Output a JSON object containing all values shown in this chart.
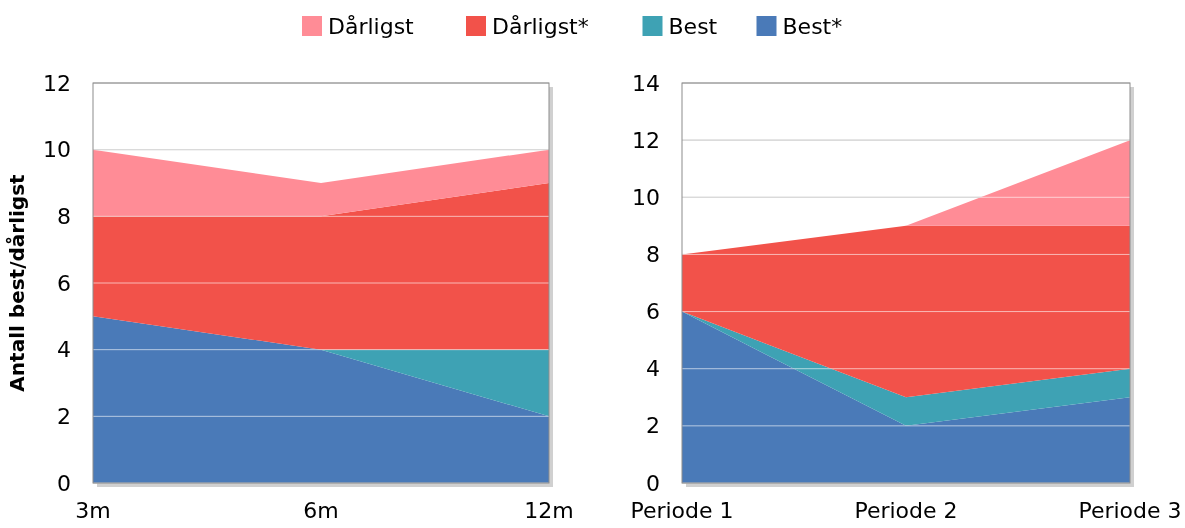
{
  "chart_data": [
    {
      "type": "area",
      "stacked": true,
      "ylabel": "Antall best/dårligst",
      "categories": [
        "3m",
        "6m",
        "12m"
      ],
      "ylim": [
        0,
        12
      ],
      "yticks": [
        0,
        2,
        4,
        6,
        8,
        10,
        12
      ],
      "grid": "y",
      "legend": "top",
      "series": [
        {
          "name": "Best*",
          "color": "#4a7ab8",
          "values": [
            5,
            4,
            2
          ]
        },
        {
          "name": "Best",
          "color": "#3ea2b4",
          "values": [
            0,
            0,
            2
          ]
        },
        {
          "name": "Dårligst*",
          "color": "#f2524a",
          "values": [
            3,
            4,
            5
          ]
        },
        {
          "name": "Dårligst",
          "color": "#ff8c96",
          "values": [
            2,
            1,
            1
          ]
        }
      ]
    },
    {
      "type": "area",
      "stacked": true,
      "categories": [
        "Periode 1",
        "Periode 2",
        "Periode 3"
      ],
      "ylim": [
        0,
        14
      ],
      "yticks": [
        0,
        2,
        4,
        6,
        8,
        10,
        12,
        14
      ],
      "grid": "y",
      "series": [
        {
          "color": "#4a7ab8",
          "values": [
            6,
            2,
            3
          ]
        },
        {
          "color": "#3ea2b4",
          "values": [
            0,
            1,
            1
          ]
        },
        {
          "color": "#f2524a",
          "values": [
            2,
            6,
            5
          ]
        },
        {
          "color": "#ff8c96",
          "values": [
            0,
            0,
            3
          ]
        }
      ]
    }
  ]
}
